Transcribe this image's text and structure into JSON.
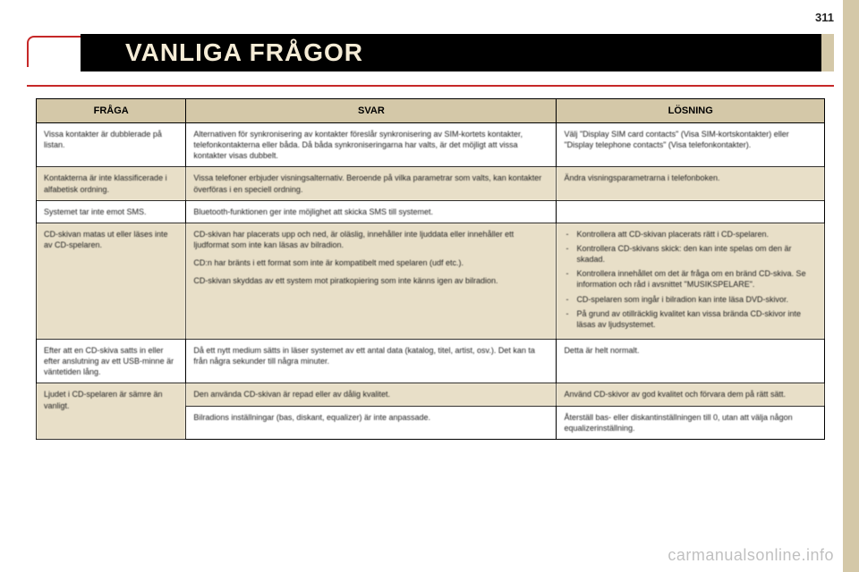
{
  "page_number": "311",
  "title": "VANLIGA FRÅGOR",
  "watermark": "carmanualsonline.info",
  "columns": {
    "question": "FRÅGA",
    "answer": "SVAR",
    "solution": "LÖSNING"
  },
  "rows": [
    {
      "shaded": false,
      "q": "Vissa kontakter är dubblerade på listan.",
      "a": "Alternativen för synkronisering av kontakter föreslår synkronisering av SIM-kortets kontakter, telefonkontakterna eller båda. Då båda synkroniseringarna har valts, är det möjligt att vissa kontakter visas dubbelt.",
      "s": "Välj \"Display SIM card contacts\" (Visa SIM-kortskontakter) eller \"Display telephone contacts\" (Visa telefonkontakter)."
    },
    {
      "shaded": true,
      "q": "Kontakterna är inte klassificerade i alfabetisk ordning.",
      "a": "Vissa telefoner erbjuder visningsalternativ. Beroende på vilka parametrar som valts, kan kontakter överföras i en speciell ordning.",
      "s": "Ändra visningsparametrarna i telefonboken."
    },
    {
      "shaded": false,
      "q": "Systemet tar inte emot SMS.",
      "a": "Bluetooth-funktionen ger inte möjlighet att skicka SMS till systemet.",
      "s": ""
    },
    {
      "shaded": true,
      "q": "CD-skivan matas ut eller läses inte av CD-spelaren.",
      "a_parts": [
        "CD-skivan har placerats upp och ned, är oläslig, innehåller inte ljuddata eller innehåller ett ljudformat som inte kan läsas av bilradion.",
        "CD:n har bränts i ett format som inte är kompatibelt med spelaren (udf etc.).",
        "CD-skivan skyddas av ett system mot piratkopiering som inte känns igen av bilradion."
      ],
      "s_list": [
        "Kontrollera att CD-skivan placerats rätt i CD-spelaren.",
        "Kontrollera CD-skivans skick: den kan inte spelas om den är skadad.",
        "Kontrollera innehållet om det är fråga om en bränd CD-skiva. Se information och råd i avsnittet \"MUSIKSPELARE\".",
        "CD-spelaren som ingår i bilradion kan inte läsa DVD-skivor.",
        "På grund av otillräcklig kvalitet kan vissa brända CD-skivor inte läsas av ljudsystemet."
      ]
    },
    {
      "shaded": false,
      "q": "Efter att en CD-skiva satts in eller efter anslutning av ett USB-minne är väntetiden lång.",
      "a": "Då ett nytt medium sätts in läser systemet av ett antal data (katalog, titel, artist, osv.). Det kan ta från några sekunder till några minuter.",
      "s": "Detta är helt normalt."
    },
    {
      "shaded": true,
      "q": "Ljudet i CD-spelaren är sämre än vanligt.",
      "a": "Den använda CD-skivan är repad eller av dålig kvalitet.",
      "s": "Använd CD-skivor av god kvalitet och förvara dem på rätt sätt."
    },
    {
      "shaded": false,
      "q": "",
      "a": "Bilradions inställningar (bas, diskant, equalizer) är inte anpassade.",
      "s": "Återställ bas- eller diskantinställningen till 0, utan att välja någon equalizerinställning."
    }
  ]
}
